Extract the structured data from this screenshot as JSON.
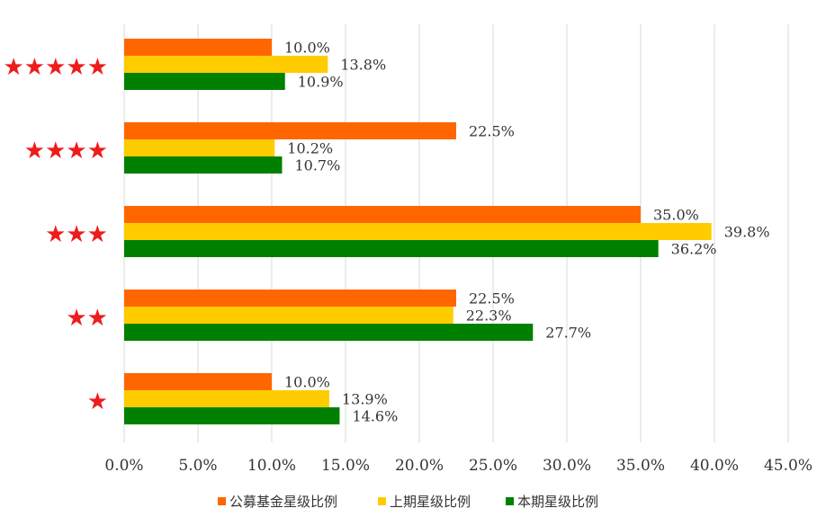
{
  "chart_data": {
    "type": "bar",
    "orientation": "horizontal",
    "categories": [
      "★★★★★",
      "★★★★",
      "★★★",
      "★★",
      "★"
    ],
    "series": [
      {
        "name": "公募基金星级比例",
        "color": "#ff6600",
        "values": [
          10.0,
          22.5,
          35.0,
          22.5,
          10.0
        ],
        "labels": [
          "10.0%",
          "22.5%",
          "35.0%",
          "22.5%",
          "10.0%"
        ]
      },
      {
        "name": "上期星级比例",
        "color": "#ffcc00",
        "values": [
          13.8,
          10.2,
          39.8,
          22.3,
          13.9
        ],
        "labels": [
          "13.8%",
          "10.2%",
          "39.8%",
          "22.3%",
          "13.9%"
        ]
      },
      {
        "name": "本期星级比例",
        "color": "#008000",
        "values": [
          10.9,
          10.7,
          36.2,
          27.7,
          14.6
        ],
        "labels": [
          "10.9%",
          "10.7%",
          "36.2%",
          "27.7%",
          "14.6%"
        ]
      }
    ],
    "xlim": [
      0,
      45
    ],
    "xticks": [
      0,
      5,
      10,
      15,
      20,
      25,
      30,
      35,
      40,
      45
    ],
    "xtick_labels": [
      "0.0%",
      "5.0%",
      "10.0%",
      "15.0%",
      "20.0%",
      "25.0%",
      "30.0%",
      "35.0%",
      "40.0%",
      "45.0%"
    ],
    "grid": true,
    "legend_position": "bottom",
    "category_color": "#ee1c1c",
    "title": "",
    "xlabel": "",
    "ylabel": ""
  }
}
